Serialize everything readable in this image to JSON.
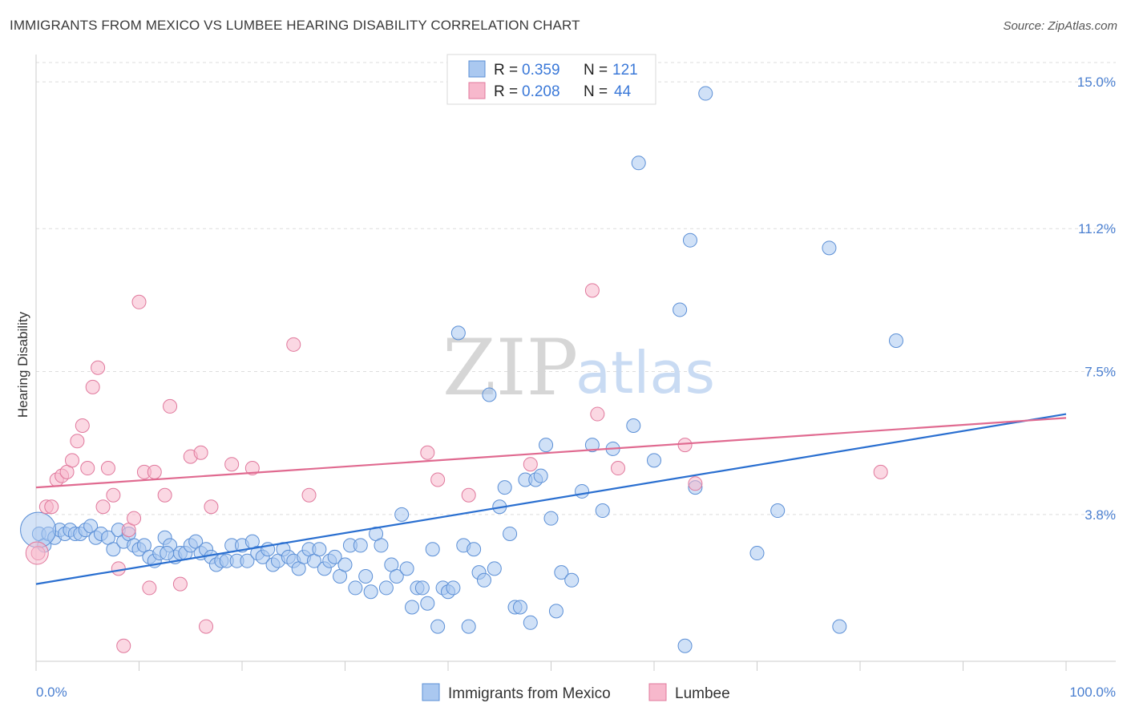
{
  "title": "IMMIGRANTS FROM MEXICO VS LUMBEE HEARING DISABILITY CORRELATION CHART",
  "source": "Source: ZipAtlas.com",
  "watermark": {
    "zip": "ZIP",
    "atlas": "atlas"
  },
  "legend": {
    "rows": [
      {
        "r_label": "R = ",
        "r_value": "0.359",
        "n_label": "N = ",
        "n_value": "121"
      },
      {
        "r_label": "R = ",
        "r_value": "0.208",
        "n_label": "N = ",
        "n_value": "44"
      }
    ]
  },
  "colors": {
    "blue_fill": "#aac8f0",
    "blue_stroke": "#5b8fd6",
    "blue_line": "#2a6fd0",
    "pink_fill": "#f7b8cc",
    "pink_stroke": "#e0789c",
    "pink_line": "#e06a90",
    "grid": "#dddddd",
    "axis_label": "#4a7fd0"
  },
  "chart_data": {
    "type": "scatter",
    "title": "IMMIGRANTS FROM MEXICO VS LUMBEE HEARING DISABILITY CORRELATION CHART",
    "xlabel": "",
    "ylabel": "Hearing Disability",
    "xlim": [
      0,
      100
    ],
    "ylim": [
      0,
      15.5
    ],
    "x_tick_labels": [
      "0.0%",
      "100.0%"
    ],
    "y_ticks": [
      {
        "value": 3.8,
        "label": "3.8%"
      },
      {
        "value": 7.5,
        "label": "7.5%"
      },
      {
        "value": 11.2,
        "label": "11.2%"
      },
      {
        "value": 15.0,
        "label": "15.0%"
      }
    ],
    "grid": true,
    "legend_position": "top-center",
    "series": [
      {
        "name": "Immigrants from Mexico",
        "color": "#aac8f0",
        "R": 0.359,
        "N": 121,
        "trend": {
          "x": [
            0,
            100
          ],
          "y": [
            2.0,
            6.4
          ]
        },
        "points": [
          [
            0.3,
            3.3
          ],
          [
            0.8,
            3.0
          ],
          [
            1.2,
            3.3
          ],
          [
            1.8,
            3.2
          ],
          [
            2.3,
            3.4
          ],
          [
            2.8,
            3.3
          ],
          [
            3.3,
            3.4
          ],
          [
            3.8,
            3.3
          ],
          [
            4.3,
            3.3
          ],
          [
            4.8,
            3.4
          ],
          [
            5.3,
            3.5
          ],
          [
            5.8,
            3.2
          ],
          [
            6.3,
            3.3
          ],
          [
            7.0,
            3.2
          ],
          [
            7.5,
            2.9
          ],
          [
            8.0,
            3.4
          ],
          [
            8.5,
            3.1
          ],
          [
            9.0,
            3.3
          ],
          [
            9.5,
            3.0
          ],
          [
            10.0,
            2.9
          ],
          [
            10.5,
            3.0
          ],
          [
            11.0,
            2.7
          ],
          [
            11.5,
            2.6
          ],
          [
            12.0,
            2.8
          ],
          [
            12.5,
            3.2
          ],
          [
            13.0,
            3.0
          ],
          [
            13.5,
            2.7
          ],
          [
            14.0,
            2.8
          ],
          [
            14.5,
            2.8
          ],
          [
            15.0,
            3.0
          ],
          [
            15.5,
            3.1
          ],
          [
            16.0,
            2.8
          ],
          [
            16.5,
            2.9
          ],
          [
            17.0,
            2.7
          ],
          [
            17.5,
            2.5
          ],
          [
            18.0,
            2.6
          ],
          [
            18.5,
            2.6
          ],
          [
            19.0,
            3.0
          ],
          [
            19.5,
            2.6
          ],
          [
            20.0,
            3.0
          ],
          [
            20.5,
            2.6
          ],
          [
            21.0,
            3.1
          ],
          [
            21.5,
            2.8
          ],
          [
            22.0,
            2.7
          ],
          [
            22.5,
            2.9
          ],
          [
            23.0,
            2.5
          ],
          [
            23.5,
            2.6
          ],
          [
            24.0,
            2.9
          ],
          [
            24.5,
            2.7
          ],
          [
            25.0,
            2.6
          ],
          [
            25.5,
            2.4
          ],
          [
            26.0,
            2.7
          ],
          [
            26.5,
            2.9
          ],
          [
            27.0,
            2.6
          ],
          [
            27.5,
            2.9
          ],
          [
            28.0,
            2.4
          ],
          [
            28.5,
            2.6
          ],
          [
            29.0,
            2.7
          ],
          [
            29.5,
            2.2
          ],
          [
            30.0,
            2.5
          ],
          [
            30.5,
            3.0
          ],
          [
            31.0,
            1.9
          ],
          [
            31.5,
            3.0
          ],
          [
            32.0,
            2.2
          ],
          [
            32.5,
            1.8
          ],
          [
            33.0,
            3.3
          ],
          [
            33.5,
            3.0
          ],
          [
            34.0,
            1.9
          ],
          [
            34.5,
            2.5
          ],
          [
            35.0,
            2.2
          ],
          [
            35.5,
            3.8
          ],
          [
            36.0,
            2.4
          ],
          [
            36.5,
            1.4
          ],
          [
            37.0,
            1.9
          ],
          [
            37.5,
            1.9
          ],
          [
            38.0,
            1.5
          ],
          [
            38.5,
            2.9
          ],
          [
            39.0,
            0.9
          ],
          [
            39.5,
            1.9
          ],
          [
            40.0,
            1.8
          ],
          [
            40.5,
            1.9
          ],
          [
            41.0,
            8.5
          ],
          [
            41.5,
            3.0
          ],
          [
            42.0,
            0.9
          ],
          [
            42.5,
            2.9
          ],
          [
            43.0,
            2.3
          ],
          [
            43.5,
            2.1
          ],
          [
            44.0,
            6.9
          ],
          [
            44.5,
            2.4
          ],
          [
            45.0,
            4.0
          ],
          [
            45.5,
            4.5
          ],
          [
            46.0,
            3.3
          ],
          [
            46.5,
            1.4
          ],
          [
            47.0,
            1.4
          ],
          [
            47.5,
            4.7
          ],
          [
            48.0,
            1.0
          ],
          [
            48.5,
            4.7
          ],
          [
            49.0,
            4.8
          ],
          [
            49.5,
            5.6
          ],
          [
            50.0,
            3.7
          ],
          [
            50.5,
            1.3
          ],
          [
            51.0,
            2.3
          ],
          [
            52.0,
            2.1
          ],
          [
            53.0,
            4.4
          ],
          [
            54.0,
            5.6
          ],
          [
            55.0,
            3.9
          ],
          [
            56.0,
            5.5
          ],
          [
            58.0,
            6.1
          ],
          [
            58.5,
            12.9
          ],
          [
            60.0,
            5.2
          ],
          [
            62.5,
            9.1
          ],
          [
            63.0,
            0.4
          ],
          [
            63.5,
            10.9
          ],
          [
            64.0,
            4.5
          ],
          [
            65.0,
            14.7
          ],
          [
            70.0,
            2.8
          ],
          [
            77.0,
            10.7
          ],
          [
            78.0,
            0.9
          ],
          [
            83.5,
            8.3
          ],
          [
            72.0,
            3.9
          ],
          [
            12.7,
            2.8
          ]
        ]
      },
      {
        "name": "Lumbee",
        "color": "#f7b8cc",
        "R": 0.208,
        "N": 44,
        "trend": {
          "x": [
            0,
            100
          ],
          "y": [
            4.5,
            6.3
          ]
        },
        "points": [
          [
            0.2,
            2.8
          ],
          [
            1.0,
            4.0
          ],
          [
            1.5,
            4.0
          ],
          [
            2.0,
            4.7
          ],
          [
            2.5,
            4.8
          ],
          [
            3.0,
            4.9
          ],
          [
            3.5,
            5.2
          ],
          [
            4.0,
            5.7
          ],
          [
            4.5,
            6.1
          ],
          [
            5.0,
            5.0
          ],
          [
            5.5,
            7.1
          ],
          [
            6.0,
            7.6
          ],
          [
            6.5,
            4.0
          ],
          [
            7.0,
            5.0
          ],
          [
            7.5,
            4.3
          ],
          [
            8.0,
            2.4
          ],
          [
            8.5,
            0.4
          ],
          [
            9.0,
            3.4
          ],
          [
            9.5,
            3.7
          ],
          [
            10.0,
            9.3
          ],
          [
            10.5,
            4.9
          ],
          [
            11.0,
            1.9
          ],
          [
            11.5,
            4.9
          ],
          [
            12.5,
            4.3
          ],
          [
            13.0,
            6.6
          ],
          [
            14.0,
            2.0
          ],
          [
            15.0,
            5.3
          ],
          [
            16.0,
            5.4
          ],
          [
            16.5,
            0.9
          ],
          [
            17.0,
            4.0
          ],
          [
            19.0,
            5.1
          ],
          [
            21.0,
            5.0
          ],
          [
            25.0,
            8.2
          ],
          [
            26.5,
            4.3
          ],
          [
            38.0,
            5.4
          ],
          [
            39.0,
            4.7
          ],
          [
            42.0,
            4.3
          ],
          [
            48.0,
            5.1
          ],
          [
            54.0,
            9.6
          ],
          [
            54.5,
            6.4
          ],
          [
            56.5,
            5.0
          ],
          [
            63.0,
            5.6
          ],
          [
            64.0,
            4.6
          ],
          [
            82.0,
            4.9
          ]
        ]
      }
    ]
  }
}
